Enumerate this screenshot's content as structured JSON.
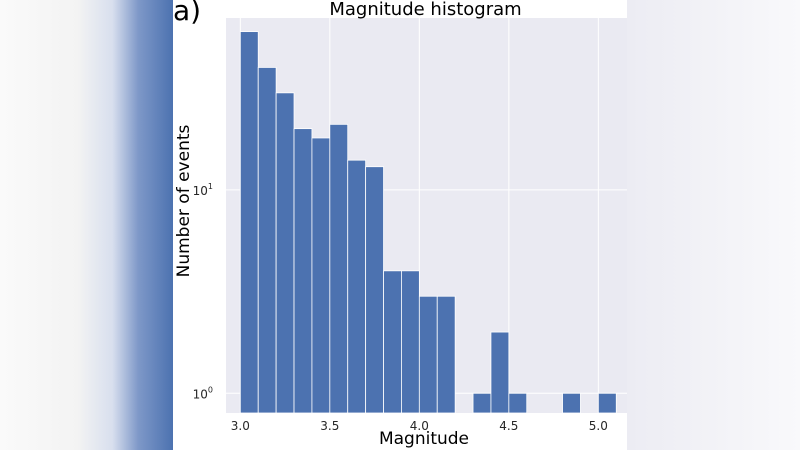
{
  "panel_label": "a)",
  "chart_data": {
    "type": "bar",
    "title": "Magnitude histogram",
    "xlabel": "Magnitude",
    "ylabel": "Number of events",
    "y_scale": "log",
    "ylim": [
      0.8,
      70
    ],
    "xlim": [
      2.92,
      5.16
    ],
    "bin_width": 0.1,
    "bins": [
      {
        "x_start": 3.0,
        "x_end": 3.1,
        "count": 60
      },
      {
        "x_start": 3.1,
        "x_end": 3.2,
        "count": 40
      },
      {
        "x_start": 3.2,
        "x_end": 3.3,
        "count": 30
      },
      {
        "x_start": 3.3,
        "x_end": 3.4,
        "count": 20
      },
      {
        "x_start": 3.4,
        "x_end": 3.5,
        "count": 18
      },
      {
        "x_start": 3.5,
        "x_end": 3.6,
        "count": 21
      },
      {
        "x_start": 3.6,
        "x_end": 3.7,
        "count": 14
      },
      {
        "x_start": 3.7,
        "x_end": 3.8,
        "count": 13
      },
      {
        "x_start": 3.8,
        "x_end": 3.9,
        "count": 4
      },
      {
        "x_start": 3.9,
        "x_end": 4.0,
        "count": 4
      },
      {
        "x_start": 4.0,
        "x_end": 4.1,
        "count": 3
      },
      {
        "x_start": 4.1,
        "x_end": 4.2,
        "count": 3
      },
      {
        "x_start": 4.3,
        "x_end": 4.4,
        "count": 1
      },
      {
        "x_start": 4.4,
        "x_end": 4.5,
        "count": 2
      },
      {
        "x_start": 4.5,
        "x_end": 4.6,
        "count": 1
      },
      {
        "x_start": 4.8,
        "x_end": 4.9,
        "count": 1
      },
      {
        "x_start": 5.0,
        "x_end": 5.1,
        "count": 1
      }
    ],
    "x_ticks": [
      {
        "value": 3.0,
        "label": "3.0"
      },
      {
        "value": 3.5,
        "label": "3.5"
      },
      {
        "value": 4.0,
        "label": "4.0"
      },
      {
        "value": 4.5,
        "label": "4.5"
      },
      {
        "value": 5.0,
        "label": "5.0"
      }
    ],
    "y_ticks": [
      {
        "value": 1,
        "base": "10",
        "exp": "0"
      },
      {
        "value": 10,
        "base": "10",
        "exp": "1"
      }
    ],
    "grid": true,
    "colors": {
      "bar": "#4c72b0",
      "plot_bg": "#eaeaf2",
      "grid": "#ffffff"
    }
  }
}
